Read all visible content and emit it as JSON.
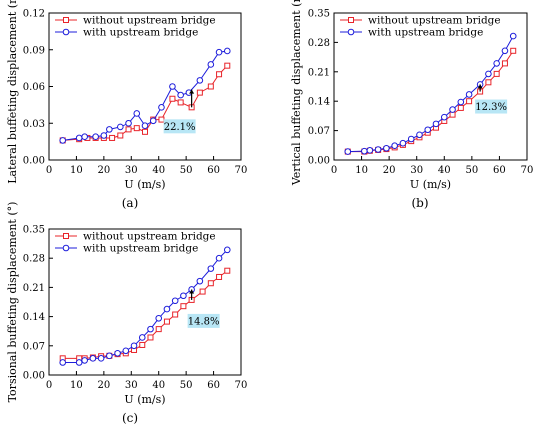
{
  "chart_data": [
    {
      "type": "line",
      "panel_label": "(a)",
      "xlabel": "U (m/s)",
      "ylabel": "Lateral buffeting displacement (m)",
      "xlim": [
        0,
        70
      ],
      "ylim": [
        0,
        0.12
      ],
      "xticks": [
        "0",
        "10",
        "20",
        "30",
        "40",
        "50",
        "60",
        "70"
      ],
      "yticks": [
        "0.00",
        "0.03",
        "0.06",
        "0.09",
        "0.12"
      ],
      "legend_position": "top-left",
      "annotation": "22.1%",
      "annotation_x": 52,
      "series": [
        {
          "name": "without upstream bridge",
          "color": "#e8242a",
          "marker": "square",
          "x": [
            5,
            11,
            14,
            17,
            20,
            23,
            26,
            29,
            32,
            35,
            38,
            41,
            45,
            48,
            52,
            55,
            59,
            62,
            65
          ],
          "y": [
            0.016,
            0.017,
            0.018,
            0.018,
            0.018,
            0.018,
            0.02,
            0.025,
            0.026,
            0.023,
            0.033,
            0.033,
            0.05,
            0.047,
            0.043,
            0.055,
            0.06,
            0.07,
            0.077
          ]
        },
        {
          "name": "with upstream bridge",
          "color": "#1d1ddb",
          "marker": "circle",
          "x": [
            5,
            11,
            13,
            17,
            20,
            22,
            26,
            29,
            32,
            35,
            38,
            41,
            45,
            48,
            51,
            55,
            59,
            62,
            65
          ],
          "y": [
            0.016,
            0.018,
            0.019,
            0.019,
            0.02,
            0.025,
            0.027,
            0.03,
            0.038,
            0.028,
            0.032,
            0.043,
            0.06,
            0.053,
            0.055,
            0.065,
            0.078,
            0.088,
            0.089
          ]
        }
      ]
    },
    {
      "type": "line",
      "panel_label": "(b)",
      "xlabel": "U (m/s)",
      "ylabel": "Vertical buffeting displacement (m)",
      "xlim": [
        0,
        70
      ],
      "ylim": [
        0,
        0.35
      ],
      "xticks": [
        "0",
        "10",
        "20",
        "30",
        "40",
        "50",
        "60",
        "70"
      ],
      "yticks": [
        "0.00",
        "0.07",
        "0.14",
        "0.21",
        "0.28",
        "0.35"
      ],
      "legend_position": "top-left",
      "annotation": "12.3%",
      "annotation_x": 53,
      "series": [
        {
          "name": "without upstream bridge",
          "color": "#e8242a",
          "marker": "square",
          "x": [
            5,
            11,
            13,
            16,
            19,
            22,
            25,
            28,
            31,
            34,
            37,
            40,
            43,
            46,
            49,
            53,
            56,
            59,
            62,
            65
          ],
          "y": [
            0.02,
            0.02,
            0.022,
            0.024,
            0.026,
            0.03,
            0.036,
            0.045,
            0.054,
            0.065,
            0.077,
            0.093,
            0.108,
            0.124,
            0.14,
            0.163,
            0.185,
            0.205,
            0.23,
            0.26
          ]
        },
        {
          "name": "with upstream bridge",
          "color": "#1d1ddb",
          "marker": "circle",
          "x": [
            5,
            11,
            13,
            16,
            19,
            22,
            25,
            28,
            31,
            34,
            37,
            40,
            43,
            46,
            49,
            53,
            56,
            59,
            62,
            65
          ],
          "y": [
            0.02,
            0.021,
            0.023,
            0.025,
            0.028,
            0.034,
            0.04,
            0.05,
            0.06,
            0.072,
            0.086,
            0.102,
            0.12,
            0.138,
            0.156,
            0.18,
            0.205,
            0.23,
            0.26,
            0.295
          ]
        }
      ]
    },
    {
      "type": "line",
      "panel_label": "(c)",
      "xlabel": "U (m/s)",
      "ylabel": "Torsional buffeting displacement (°)",
      "xlim": [
        0,
        70
      ],
      "ylim": [
        0,
        0.35
      ],
      "xticks": [
        "0",
        "10",
        "20",
        "30",
        "40",
        "50",
        "60",
        "70"
      ],
      "yticks": [
        "0.00",
        "0.07",
        "0.14",
        "0.21",
        "0.28",
        "0.35"
      ],
      "legend_position": "top-left",
      "annotation": "14.8%",
      "annotation_x": 52,
      "series": [
        {
          "name": "without upstream bridge",
          "color": "#e8242a",
          "marker": "square",
          "x": [
            5,
            11,
            13,
            16,
            19,
            22,
            25,
            28,
            31,
            34,
            37,
            40,
            43,
            46,
            49,
            52,
            56,
            59,
            62,
            65
          ],
          "y": [
            0.04,
            0.04,
            0.04,
            0.042,
            0.045,
            0.046,
            0.05,
            0.052,
            0.06,
            0.072,
            0.09,
            0.11,
            0.128,
            0.145,
            0.165,
            0.18,
            0.2,
            0.22,
            0.235,
            0.25
          ]
        },
        {
          "name": "with upstream bridge",
          "color": "#1d1ddb",
          "marker": "circle",
          "x": [
            5,
            11,
            13,
            16,
            19,
            22,
            25,
            28,
            31,
            34,
            37,
            40,
            43,
            46,
            49,
            52,
            55,
            59,
            62,
            65
          ],
          "y": [
            0.03,
            0.03,
            0.035,
            0.04,
            0.04,
            0.046,
            0.052,
            0.058,
            0.07,
            0.09,
            0.11,
            0.136,
            0.158,
            0.178,
            0.19,
            0.205,
            0.225,
            0.255,
            0.28,
            0.3
          ]
        }
      ]
    }
  ]
}
